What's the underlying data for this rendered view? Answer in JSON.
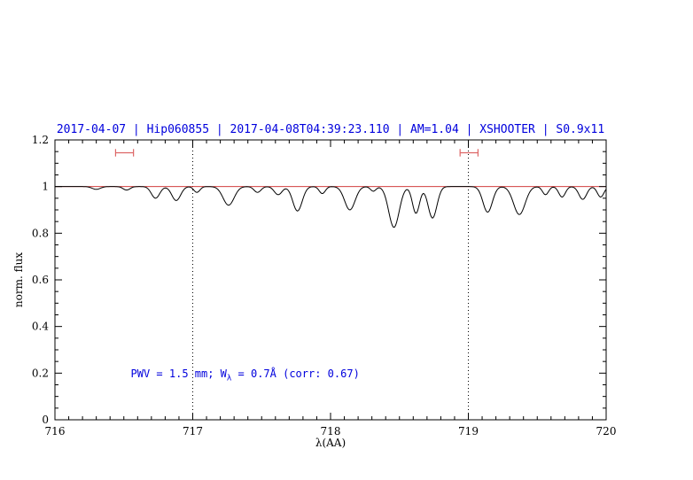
{
  "chart_data": {
    "type": "line",
    "title": "2017-04-07 | Hip060855 | 2017-04-08T04:39:23.110 | AM=1.04 | XSHOOTER | S0.9x11",
    "title_color": "#0000dd",
    "xlabel": "λ(AA)",
    "ylabel": "norm. flux",
    "xlim": [
      716,
      720
    ],
    "ylim": [
      0,
      1.2
    ],
    "xticks": [
      716,
      717,
      718,
      719,
      720
    ],
    "xtick_labels": [
      "716",
      "717",
      "718",
      "719",
      "720"
    ],
    "yticks": [
      0,
      0.2,
      0.4,
      0.6,
      0.8,
      1,
      1.2
    ],
    "ytick_labels": [
      "0",
      "0.2",
      "0.4",
      "0.6",
      "0.8",
      "1",
      "1.2"
    ],
    "x_minor_step": 0.1,
    "y_minor_step": 0.05,
    "grid": false,
    "legend": false,
    "axis_color": "#000000",
    "dotted_vlines": [
      717,
      719
    ],
    "continuum": {
      "y": 1.0,
      "color": "#cc2222"
    },
    "spectrum": {
      "color": "#000000",
      "baseline": 1.0,
      "sample_step": 0.008,
      "absorption_features": [
        [
          716.3,
          0.012,
          0.03
        ],
        [
          716.52,
          0.015,
          0.025
        ],
        [
          716.73,
          0.05,
          0.03
        ],
        [
          716.88,
          0.06,
          0.032
        ],
        [
          717.03,
          0.025,
          0.022
        ],
        [
          717.26,
          0.08,
          0.04
        ],
        [
          717.47,
          0.025,
          0.025
        ],
        [
          717.62,
          0.035,
          0.028
        ],
        [
          717.76,
          0.105,
          0.034
        ],
        [
          717.94,
          0.03,
          0.022
        ],
        [
          718.14,
          0.1,
          0.038
        ],
        [
          718.31,
          0.02,
          0.02
        ],
        [
          718.46,
          0.175,
          0.038
        ],
        [
          718.62,
          0.115,
          0.026
        ],
        [
          718.74,
          0.135,
          0.032
        ],
        [
          719.14,
          0.11,
          0.034
        ],
        [
          719.37,
          0.12,
          0.042
        ],
        [
          719.56,
          0.035,
          0.022
        ],
        [
          719.68,
          0.045,
          0.024
        ],
        [
          719.83,
          0.055,
          0.028
        ],
        [
          719.96,
          0.045,
          0.024
        ]
      ]
    },
    "region_markers": {
      "color": "#dd6666",
      "y": 1.145,
      "cap_halfheight": 0.016,
      "ranges": [
        [
          716.44,
          716.57
        ],
        [
          718.94,
          719.07
        ]
      ]
    },
    "annotation": {
      "prefix": "PWV = 1.5 mm; W",
      "sub": "λ",
      "suffix": " = 0.7Å (corr: 0.67)",
      "color": "#0000dd",
      "x": 716.55,
      "y": 0.19
    },
    "values": {
      "airmass": 1.04,
      "pwv_mm": 1.5,
      "w_lambda_A": 0.7,
      "corr": 0.67
    }
  }
}
